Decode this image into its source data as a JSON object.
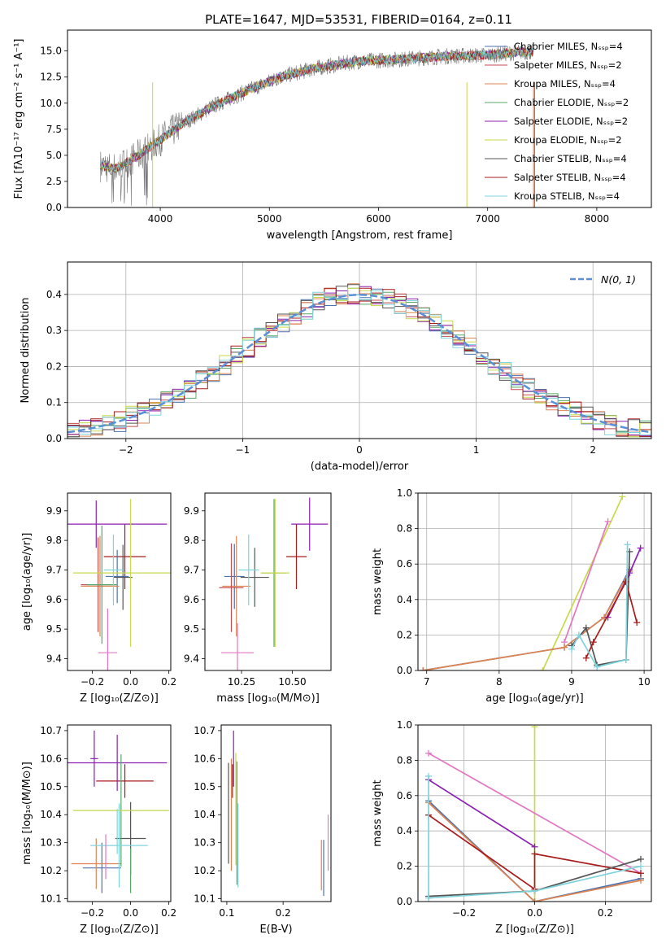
{
  "figure": {
    "title": "PLATE=1647, MJD=53531, FIBERID=0164, z=0.11"
  },
  "colors": {
    "chabrier_miles": "#4c72b0",
    "salpeter_miles": "#c44e52",
    "kroupa_miles": "#dd8452",
    "chabrier_elodie": "#55a868",
    "salpeter_elodie": "#8c1fb0",
    "kroupa_elodie": "#c9d94a",
    "chabrier_stelib": "#555555",
    "salpeter_stelib": "#a81c1c",
    "kroupa_stelib": "#7fd4dc",
    "pink": "#e377c2",
    "gaussian": "#5b8fd6"
  },
  "chart_data": [
    {
      "id": "spectrum",
      "type": "line",
      "xlabel": "wavelength [Angstrom, rest frame]",
      "ylabel": "Flux [fλ10⁻¹⁷ erg cm⁻² s⁻¹ A⁻¹]",
      "xlim": [
        3150,
        8500
      ],
      "ylim": [
        0,
        17
      ],
      "xticks": [
        4000,
        5000,
        6000,
        7000,
        8000
      ],
      "xtick_labels": [
        "4000",
        "5000",
        "6000",
        "7000",
        "8000"
      ],
      "yticks": [
        0,
        2.5,
        5,
        7.5,
        10,
        12.5,
        15
      ],
      "ytick_labels": [
        "0.0",
        "2.5",
        "5.0",
        "7.5",
        "10.0",
        "12.5",
        "15.0"
      ],
      "grid": false,
      "legend": "top-right",
      "continuum": {
        "x": [
          3450,
          3600,
          3800,
          4000,
          4200,
          4500,
          4800,
          5100,
          5400,
          5800,
          6200,
          6600,
          7000,
          7200,
          7300
        ],
        "y": [
          4.0,
          3.7,
          5.0,
          6.5,
          8.0,
          9.8,
          11.2,
          12.5,
          13.3,
          14.0,
          14.2,
          14.5,
          14.6,
          14.8,
          14.9
        ]
      },
      "series": [
        {
          "name": "Chabrier MILES, N_SSP=4",
          "color_key": "chabrier_miles"
        },
        {
          "name": "Salpeter MILES, N_SSP=2",
          "color_key": "salpeter_miles"
        },
        {
          "name": "Kroupa MILES, N_SSP=4",
          "color_key": "kroupa_miles"
        },
        {
          "name": "Chabrier ELODIE, N_SSP=2",
          "color_key": "chabrier_elodie"
        },
        {
          "name": "Salpeter ELODIE, N_SSP=2",
          "color_key": "salpeter_elodie"
        },
        {
          "name": "Kroupa ELODIE, N_SSP=2",
          "color_key": "kroupa_elodie"
        },
        {
          "name": "Chabrier STELIB, N_SSP=4",
          "color_key": "chabrier_stelib"
        },
        {
          "name": "Salpeter STELIB, N_SSP=4",
          "color_key": "salpeter_stelib"
        },
        {
          "name": "Kroupa STELIB, N_SSP=4",
          "color_key": "kroupa_stelib"
        }
      ]
    },
    {
      "id": "residuals",
      "type": "line",
      "xlabel": "(data-model)/error",
      "ylabel": "Normed distribution",
      "xlim": [
        -2.5,
        2.5
      ],
      "ylim": [
        0,
        0.49
      ],
      "xticks": [
        -2,
        -1,
        0,
        1,
        2
      ],
      "xtick_labels": [
        "−2",
        "−1",
        "0",
        "1",
        "2"
      ],
      "yticks": [
        0,
        0.1,
        0.2,
        0.3,
        0.4
      ],
      "ytick_labels": [
        "0.0",
        "0.1",
        "0.2",
        "0.3",
        "0.4"
      ],
      "grid": true,
      "legend": "top-right",
      "gaussian_label": "N(0, 1)",
      "bin_width": 0.1,
      "series_colors": [
        "chabrier_miles",
        "salpeter_miles",
        "kroupa_miles",
        "chabrier_elodie",
        "salpeter_elodie",
        "kroupa_elodie",
        "chabrier_stelib",
        "salpeter_stelib",
        "kroupa_stelib"
      ]
    },
    {
      "id": "z-age",
      "type": "scatter",
      "xlabel": "Z [log₁₀(Z/Z⊙)]",
      "ylabel": "age  [log₁₀(age/yr)]",
      "xlim": [
        -0.33,
        0.21
      ],
      "ylim": [
        9.36,
        9.96
      ],
      "xticks": [
        -0.2,
        0,
        0.2
      ],
      "xtick_labels": [
        "−0.2",
        "0.0",
        "0.2"
      ],
      "yticks": [
        9.4,
        9.5,
        9.6,
        9.7,
        9.8,
        9.9
      ],
      "ytick_labels": [
        "9.4",
        "9.5",
        "9.6",
        "9.7",
        "9.8",
        "9.9"
      ],
      "grid": false,
      "points": [
        {
          "x": -0.03,
          "y": 9.745,
          "xerr": 0.11,
          "yerr": 0.11,
          "c": "salpeter_stelib"
        },
        {
          "x": -0.18,
          "y": 9.855,
          "xerr": 0.37,
          "yerr": 0.08,
          "c": "salpeter_elodie"
        },
        {
          "x": -0.07,
          "y": 9.678,
          "xerr": 0.06,
          "yerr": 0.09,
          "c": "chabrier_miles"
        },
        {
          "x": -0.04,
          "y": 9.675,
          "xerr": 0.05,
          "yerr": 0.11,
          "c": "chabrier_stelib"
        },
        {
          "x": -0.16,
          "y": 9.645,
          "xerr": 0.1,
          "yerr": 0.17,
          "c": "kroupa_miles"
        },
        {
          "x": -0.17,
          "y": 9.65,
          "xerr": 0.09,
          "yerr": 0.16,
          "c": "salpeter_miles"
        },
        {
          "x": -0.15,
          "y": 9.65,
          "xerr": 0.08,
          "yerr": 0.2,
          "c": "chabrier_elodie"
        },
        {
          "x": -0.12,
          "y": 9.42,
          "xerr": 0.05,
          "yerr": 0.15,
          "c": "pink"
        },
        {
          "x": -0.09,
          "y": 9.7,
          "xerr": 0.05,
          "yerr": 0.12,
          "c": "kroupa_stelib"
        },
        {
          "x": 0.0,
          "y": 9.69,
          "xerr": 0.3,
          "yerr": 0.25,
          "c": "kroupa_elodie"
        }
      ]
    },
    {
      "id": "mass-age",
      "type": "scatter",
      "xlabel": "mass [log₁₀(M/M⊙)]",
      "ylabel": "",
      "xlim": [
        10.07,
        10.69
      ],
      "ylim": [
        9.36,
        9.96
      ],
      "xticks": [
        10.25,
        10.5
      ],
      "xtick_labels": [
        "10.25",
        "10.50"
      ],
      "yticks": [
        9.4,
        9.5,
        9.6,
        9.7,
        9.8,
        9.9
      ],
      "ytick_labels": [
        "9.4",
        "9.5",
        "9.6",
        "9.7",
        "9.8",
        "9.9"
      ],
      "grid": false,
      "points": [
        {
          "x": 10.52,
          "y": 9.745,
          "xerr": 0.05,
          "yerr": 0.11,
          "c": "salpeter_stelib"
        },
        {
          "x": 10.585,
          "y": 9.855,
          "xerr": 0.09,
          "yerr": 0.09,
          "c": "salpeter_elodie"
        },
        {
          "x": 10.215,
          "y": 9.678,
          "xerr": 0.05,
          "yerr": 0.11,
          "c": "chabrier_miles"
        },
        {
          "x": 10.315,
          "y": 9.675,
          "xerr": 0.07,
          "yerr": 0.1,
          "c": "chabrier_stelib"
        },
        {
          "x": 10.225,
          "y": 9.645,
          "xerr": 0.07,
          "yerr": 0.17,
          "c": "kroupa_miles"
        },
        {
          "x": 10.2,
          "y": 9.64,
          "xerr": 0.06,
          "yerr": 0.15,
          "c": "salpeter_miles"
        },
        {
          "x": 10.41,
          "y": 9.69,
          "xerr": 0.06,
          "yerr": 0.25,
          "c": "chabrier_elodie"
        },
        {
          "x": 10.23,
          "y": 9.42,
          "xerr": 0.08,
          "yerr": 0.1,
          "c": "pink"
        },
        {
          "x": 10.285,
          "y": 9.7,
          "xerr": 0.05,
          "yerr": 0.12,
          "c": "kroupa_stelib"
        },
        {
          "x": 10.415,
          "y": 9.69,
          "xerr": 0.07,
          "yerr": 0.25,
          "c": "kroupa_elodie"
        }
      ]
    },
    {
      "id": "age-weight",
      "type": "line",
      "xlabel": "age  [log₁₀(age/yr)]",
      "ylabel": "mass weight",
      "xlim": [
        6.88,
        10.1
      ],
      "ylim": [
        0,
        1
      ],
      "xticks": [
        7,
        8,
        9,
        10
      ],
      "xtick_labels": [
        "7",
        "8",
        "9",
        "10"
      ],
      "yticks": [
        0,
        0.2,
        0.4,
        0.6,
        0.8,
        1.0
      ],
      "ytick_labels": [
        "0.0",
        "0.2",
        "0.4",
        "0.6",
        "0.8",
        "1.0"
      ],
      "grid": true,
      "series": [
        {
          "c": "kroupa_elodie",
          "x": [
            8.6,
            9.7
          ],
          "y": [
            0.0,
            0.98
          ]
        },
        {
          "c": "pink",
          "x": [
            8.9,
            9.5
          ],
          "y": [
            0.16,
            0.84
          ]
        },
        {
          "c": "chabrier_miles",
          "x": [
            6.95,
            8.9,
            9.45,
            9.8
          ],
          "y": [
            0.0,
            0.13,
            0.3,
            0.57
          ]
        },
        {
          "c": "kroupa_miles",
          "x": [
            6.95,
            8.9,
            9.45,
            9.8
          ],
          "y": [
            0.0,
            0.13,
            0.3,
            0.56
          ]
        },
        {
          "c": "salpeter_elodie",
          "x": [
            9.5,
            9.8,
            9.95
          ],
          "y": [
            0.3,
            0.55,
            0.69
          ]
        },
        {
          "c": "chabrier_stelib",
          "x": [
            9.0,
            9.2,
            9.35,
            9.75,
            9.8
          ],
          "y": [
            0.14,
            0.24,
            0.03,
            0.06,
            0.67
          ]
        },
        {
          "c": "salpeter_stelib",
          "x": [
            9.2,
            9.3,
            9.75,
            9.9
          ],
          "y": [
            0.07,
            0.16,
            0.5,
            0.27
          ]
        },
        {
          "c": "kroupa_stelib",
          "x": [
            9.0,
            9.1,
            9.35,
            9.75,
            9.77
          ],
          "y": [
            0.12,
            0.2,
            0.02,
            0.06,
            0.71
          ]
        }
      ]
    },
    {
      "id": "z-mass",
      "type": "scatter",
      "xlabel": "Z [log₁₀(Z/Z⊙)]",
      "ylabel": "mass [log₁₀(M/M⊙)]",
      "xlim": [
        -0.33,
        0.21
      ],
      "ylim": [
        10.09,
        10.72
      ],
      "xticks": [
        -0.2,
        0,
        0.2
      ],
      "xtick_labels": [
        "−0.2",
        "0.0",
        "0.2"
      ],
      "yticks": [
        10.1,
        10.2,
        10.3,
        10.4,
        10.5,
        10.6,
        10.7
      ],
      "ytick_labels": [
        "10.1",
        "10.2",
        "10.3",
        "10.4",
        "10.5",
        "10.6",
        "10.7"
      ],
      "grid": false,
      "points": [
        {
          "x": -0.03,
          "y": 10.52,
          "xerr": 0.15,
          "yerr": 0.06,
          "c": "salpeter_stelib"
        },
        {
          "x": -0.07,
          "y": 10.585,
          "xerr": 0.26,
          "yerr": 0.1,
          "c": "salpeter_elodie"
        },
        {
          "x": -0.15,
          "y": 10.21,
          "xerr": 0.1,
          "yerr": 0.09,
          "c": "chabrier_miles"
        },
        {
          "x": 0.0,
          "y": 10.315,
          "xerr": 0.08,
          "yerr": 0.13,
          "c": "chabrier_stelib"
        },
        {
          "x": -0.18,
          "y": 10.225,
          "xerr": 0.13,
          "yerr": 0.09,
          "c": "kroupa_miles"
        },
        {
          "x": -0.05,
          "y": 10.415,
          "xerr": 0.25,
          "yerr": 0.2,
          "c": "chabrier_elodie"
        },
        {
          "x": -0.19,
          "y": 10.6,
          "xerr": 0.02,
          "yerr": 0.1,
          "c": "salpeter_elodie"
        },
        {
          "x": -0.06,
          "y": 10.29,
          "xerr": 0.15,
          "yerr": 0.15,
          "c": "kroupa_stelib"
        },
        {
          "x": -0.05,
          "y": 10.415,
          "xerr": 0.25,
          "yerr": 0.0,
          "c": "kroupa_elodie"
        },
        {
          "x": -0.13,
          "y": 10.25,
          "xerr": 0.0,
          "yerr": 0.08,
          "c": "pink"
        },
        {
          "x": -0.07,
          "y": 10.34,
          "xerr": 0.0,
          "yerr": 0.08,
          "c": "kroupa_stelib"
        },
        {
          "x": 0.0,
          "y": 10.2,
          "xerr": 0.0,
          "yerr": 0.08,
          "c": "chabrier_elodie"
        }
      ]
    },
    {
      "id": "ebv-mass",
      "type": "scatter",
      "xlabel": "E(B-V)",
      "ylabel": "",
      "xlim": [
        0.09,
        0.285
      ],
      "ylim": [
        10.09,
        10.72
      ],
      "xticks": [
        0.1,
        0.2
      ],
      "xtick_labels": [
        "0.1",
        "0.2"
      ],
      "yticks": [
        10.1,
        10.2,
        10.3,
        10.4,
        10.5,
        10.6,
        10.7
      ],
      "ytick_labels": [
        "10.1",
        "10.2",
        "10.3",
        "10.4",
        "10.5",
        "10.6",
        "10.7"
      ],
      "grid": false,
      "points": [
        {
          "x": 0.103,
          "y": 10.405,
          "xerr": 0,
          "yerr": 0.18,
          "c": "chabrier_stelib"
        },
        {
          "x": 0.11,
          "y": 10.52,
          "xerr": 0,
          "yerr": 0.06,
          "c": "salpeter_stelib"
        },
        {
          "x": 0.112,
          "y": 10.6,
          "xerr": 0,
          "yerr": 0.1,
          "c": "salpeter_elodie"
        },
        {
          "x": 0.108,
          "y": 10.4,
          "xerr": 0,
          "yerr": 0.2,
          "c": "kroupa_miles"
        },
        {
          "x": 0.118,
          "y": 10.37,
          "xerr": 0,
          "yerr": 0.22,
          "c": "chabrier_elodie"
        },
        {
          "x": 0.12,
          "y": 10.29,
          "xerr": 0,
          "yerr": 0.15,
          "c": "kroupa_stelib"
        },
        {
          "x": 0.116,
          "y": 10.42,
          "xerr": 0,
          "yerr": 0.2,
          "c": "kroupa_elodie"
        },
        {
          "x": 0.268,
          "y": 10.22,
          "xerr": 0,
          "yerr": 0.09,
          "c": "kroupa_miles"
        },
        {
          "x": 0.272,
          "y": 10.21,
          "xerr": 0,
          "yerr": 0.1,
          "c": "chabrier_miles"
        },
        {
          "x": 0.28,
          "y": 10.3,
          "xerr": 0,
          "yerr": 0.1,
          "c": "pink"
        }
      ]
    },
    {
      "id": "z-weight",
      "type": "line",
      "xlabel": "Z [log₁₀(Z/Z⊙)]",
      "ylabel": "mass weight",
      "xlim": [
        -0.33,
        0.33
      ],
      "ylim": [
        0,
        1
      ],
      "xticks": [
        -0.2,
        0,
        0.2
      ],
      "xtick_labels": [
        "−0.2",
        "0.0",
        "0.2"
      ],
      "yticks": [
        0,
        0.2,
        0.4,
        0.6,
        0.8,
        1.0
      ],
      "ytick_labels": [
        "0.0",
        "0.2",
        "0.4",
        "0.6",
        "0.8",
        "1.0"
      ],
      "grid": true,
      "series": [
        {
          "c": "kroupa_elodie",
          "x": [
            0.0,
            0.0
          ],
          "y": [
            0.0,
            0.99
          ]
        },
        {
          "c": "pink",
          "x": [
            -0.3,
            0.3
          ],
          "y": [
            0.84,
            0.16
          ]
        },
        {
          "c": "salpeter_elodie",
          "x": [
            -0.3,
            0.0
          ],
          "y": [
            0.69,
            0.31
          ]
        },
        {
          "c": "chabrier_miles",
          "x": [
            -0.3,
            0.0,
            0.3
          ],
          "y": [
            0.57,
            0.0,
            0.13
          ]
        },
        {
          "c": "kroupa_miles",
          "x": [
            -0.3,
            0.0,
            0.3
          ],
          "y": [
            0.56,
            0.0,
            0.12
          ]
        },
        {
          "c": "salpeter_stelib",
          "x": [
            -0.3,
            0.0,
            0.0,
            0.3
          ],
          "y": [
            0.49,
            0.07,
            0.27,
            0.16
          ]
        },
        {
          "c": "chabrier_stelib",
          "x": [
            -0.3,
            0.0,
            0.3
          ],
          "y": [
            0.03,
            0.06,
            0.24
          ]
        },
        {
          "c": "kroupa_stelib",
          "x": [
            -0.3,
            -0.3,
            0.0,
            0.3
          ],
          "y": [
            0.71,
            0.02,
            0.06,
            0.2
          ]
        }
      ]
    }
  ]
}
